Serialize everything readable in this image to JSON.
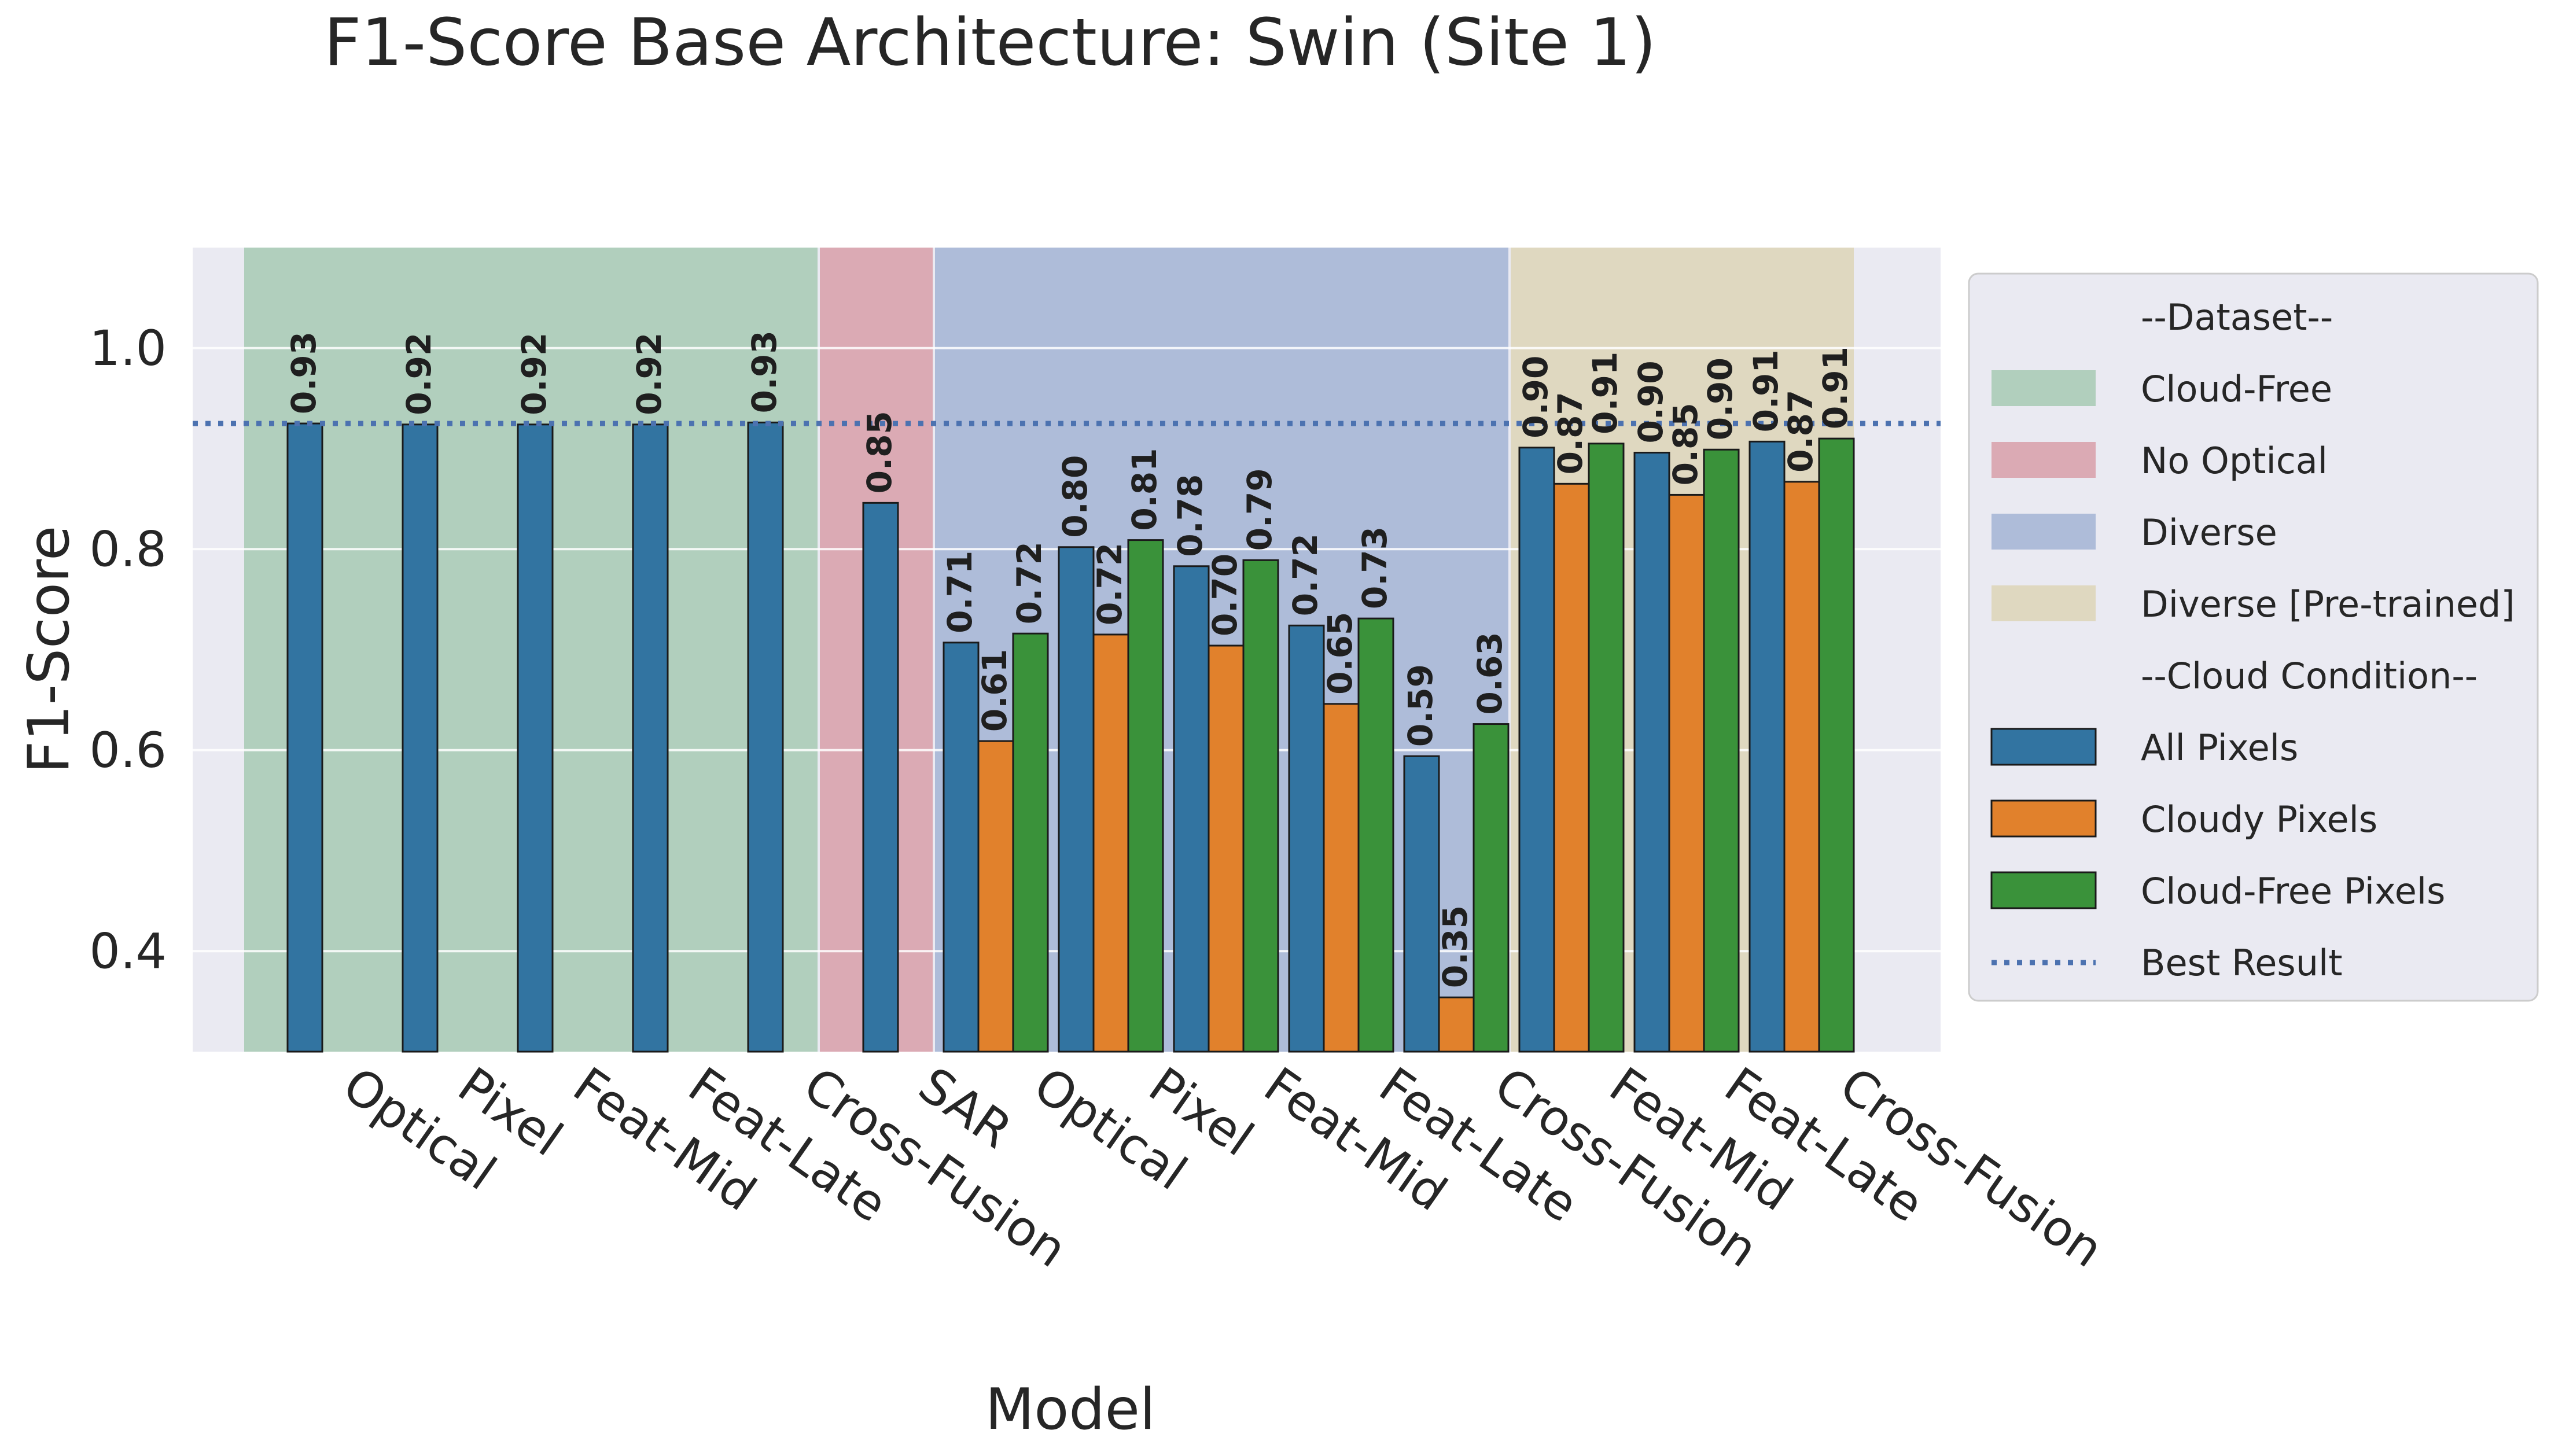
{
  "chart_data": {
    "type": "bar",
    "title": "F1-Score Base Architecture: Swin (Site 1)",
    "xlabel": "Model",
    "ylabel": "F1-Score",
    "ylim": [
      0.3,
      1.1
    ],
    "yticks": [
      "0.4",
      "0.6",
      "0.8",
      "1.0"
    ],
    "grid": true,
    "legend_position": "right",
    "best_result": 0.925,
    "categories": [
      "Optical",
      "Pixel",
      "Feat-Mid",
      "Feat-Late",
      "Cross-Fusion",
      "SAR",
      "Optical",
      "Pixel",
      "Feat-Mid",
      "Feat-Late",
      "Cross-Fusion",
      "Feat-Mid",
      "Feat-Late",
      "Cross-Fusion"
    ],
    "series": [
      {
        "name": "All Pixels",
        "color": "#3274a1",
        "values": [
          0.925,
          0.924,
          0.924,
          0.924,
          0.926,
          0.846,
          0.707,
          0.802,
          0.783,
          0.724,
          0.594,
          0.901,
          0.896,
          0.907
        ],
        "labels": [
          "0.93",
          "0.92",
          "0.92",
          "0.92",
          "0.93",
          "0.85",
          "0.71",
          "0.80",
          "0.78",
          "0.72",
          "0.59",
          "0.90",
          "0.90",
          "0.91"
        ]
      },
      {
        "name": "Cloudy Pixels",
        "color": "#e1812c",
        "values": [
          null,
          null,
          null,
          null,
          null,
          null,
          0.609,
          0.715,
          0.704,
          0.646,
          0.354,
          0.865,
          0.854,
          0.867
        ],
        "labels": [
          "",
          "",
          "",
          "",
          "",
          "",
          "0.61",
          "0.72",
          "0.70",
          "0.65",
          "0.35",
          "0.87",
          "0.85",
          "0.87"
        ]
      },
      {
        "name": "Cloud-Free Pixels",
        "color": "#3a923a",
        "values": [
          null,
          null,
          null,
          null,
          null,
          null,
          0.716,
          0.809,
          0.789,
          0.731,
          0.626,
          0.905,
          0.899,
          0.91
        ],
        "labels": [
          "",
          "",
          "",
          "",
          "",
          "",
          "0.72",
          "0.81",
          "0.79",
          "0.73",
          "0.63",
          "0.91",
          "0.90",
          "0.91"
        ]
      }
    ],
    "datasets": [
      {
        "name": "Cloud-Free",
        "color": "#b1cfbd",
        "from": 0,
        "to": 4
      },
      {
        "name": "No Optical",
        "color": "#dbaab4",
        "from": 5,
        "to": 5
      },
      {
        "name": "Diverse",
        "color": "#aebcd9",
        "from": 6,
        "to": 10
      },
      {
        "name": "Diverse [Pre-trained]",
        "color": "#dfd8c0",
        "from": 11,
        "to": 13
      }
    ],
    "legend": {
      "dataset_header": "--Dataset--",
      "cloud_header": "--Cloud Condition--",
      "best_label": "Best Result"
    }
  }
}
